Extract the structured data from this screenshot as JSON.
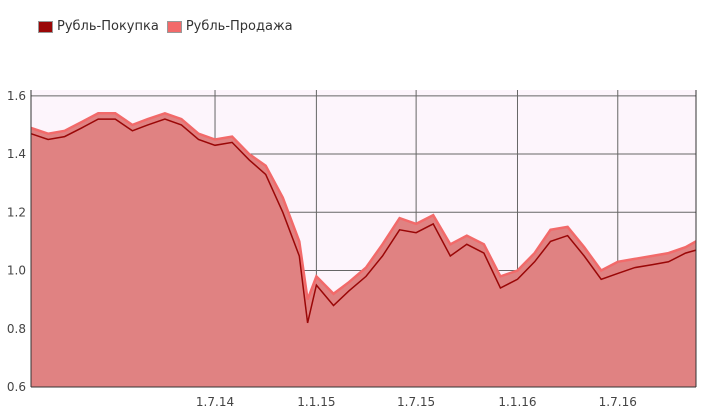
{
  "legend": [
    {
      "name": "Рубль-Покупка",
      "color": "#9a0707"
    },
    {
      "name": "Рубль-Продажа",
      "color": "#f26a6a"
    }
  ],
  "chart_data": {
    "type": "area",
    "title": "",
    "xlabel": "",
    "ylabel": "",
    "x_ticks": [
      "1.7.14",
      "1.1.15",
      "1.7.15",
      "1.1.16",
      "1.7.16"
    ],
    "y_ticks": [
      0.6,
      0.8,
      1.0,
      1.2,
      1.4,
      1.6
    ],
    "ylim": [
      0.6,
      1.62
    ],
    "xlim": [
      "2013-08-01",
      "2016-11-20"
    ],
    "grid": true,
    "legend_position": "top-left",
    "colors": {
      "buy": "#9a0707",
      "sell": "#f26a6a",
      "fill": "#e08282",
      "plot_bg": "#fdf5fc",
      "grid": "#666666"
    },
    "x": [
      "2013-08-01",
      "2013-09-01",
      "2013-10-01",
      "2013-11-01",
      "2013-12-01",
      "2014-01-01",
      "2014-02-01",
      "2014-03-01",
      "2014-04-01",
      "2014-05-01",
      "2014-06-01",
      "2014-07-01",
      "2014-08-01",
      "2014-09-01",
      "2014-10-01",
      "2014-11-01",
      "2014-12-01",
      "2014-12-16",
      "2015-01-01",
      "2015-02-01",
      "2015-03-01",
      "2015-04-01",
      "2015-05-01",
      "2015-06-01",
      "2015-07-01",
      "2015-08-01",
      "2015-09-01",
      "2015-10-01",
      "2015-11-01",
      "2015-12-01",
      "2016-01-01",
      "2016-02-01",
      "2016-03-01",
      "2016-04-01",
      "2016-05-01",
      "2016-06-01",
      "2016-07-01",
      "2016-08-01",
      "2016-09-01",
      "2016-10-01",
      "2016-11-01",
      "2016-11-20"
    ],
    "series": [
      {
        "name": "Рубль-Покупка",
        "values": [
          1.47,
          1.45,
          1.46,
          1.49,
          1.52,
          1.52,
          1.48,
          1.5,
          1.52,
          1.5,
          1.45,
          1.43,
          1.44,
          1.38,
          1.33,
          1.2,
          1.05,
          0.82,
          0.95,
          0.88,
          0.93,
          0.98,
          1.05,
          1.14,
          1.13,
          1.16,
          1.05,
          1.09,
          1.06,
          0.94,
          0.97,
          1.03,
          1.1,
          1.12,
          1.05,
          0.97,
          0.99,
          1.01,
          1.02,
          1.03,
          1.06,
          1.07
        ]
      },
      {
        "name": "Рубль-Продажа",
        "values": [
          1.49,
          1.47,
          1.48,
          1.51,
          1.54,
          1.54,
          1.5,
          1.52,
          1.54,
          1.52,
          1.47,
          1.45,
          1.46,
          1.4,
          1.36,
          1.25,
          1.1,
          0.9,
          0.98,
          0.92,
          0.96,
          1.01,
          1.09,
          1.18,
          1.16,
          1.19,
          1.09,
          1.12,
          1.09,
          0.98,
          1.0,
          1.06,
          1.14,
          1.15,
          1.08,
          1.0,
          1.03,
          1.04,
          1.05,
          1.06,
          1.08,
          1.1
        ]
      }
    ]
  }
}
